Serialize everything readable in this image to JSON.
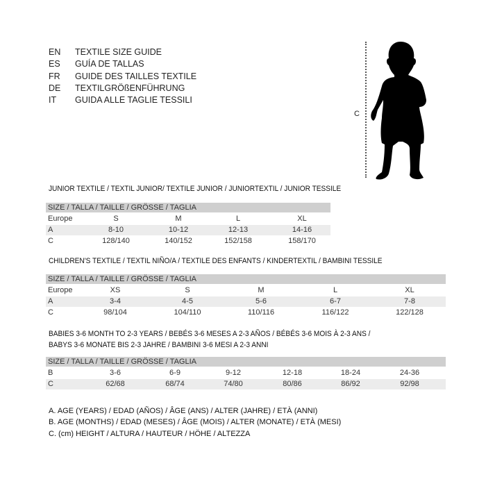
{
  "languages": [
    {
      "code": "EN",
      "text": "TEXTILE SIZE GUIDE"
    },
    {
      "code": "ES",
      "text": "GUÍA DE TALLAS"
    },
    {
      "code": "FR",
      "text": "GUIDE DES TAILLES TEXTILE"
    },
    {
      "code": "DE",
      "text": "TEXTILGRÖßENFÜHRUNG"
    },
    {
      "code": "IT",
      "text": "GUIDA ALLE TAGLIE TESSILI"
    }
  ],
  "figure": {
    "measure_label": "C",
    "icon": "baby-silhouette"
  },
  "size_header": "SIZE / TALLA / TAILLE / GRÖSSE / TAGLIA",
  "junior": {
    "title": "JUNIOR TEXTILE / TEXTIL JUNIOR/ TEXTILE JUNIOR / JUNIORTEXTIL / JUNIOR TESSILE",
    "rows": [
      {
        "label": "Europe",
        "values": [
          "S",
          "M",
          "L",
          "XL"
        ]
      },
      {
        "label": "A",
        "values": [
          "8-10",
          "10-12",
          "12-13",
          "14-16"
        ]
      },
      {
        "label": "C",
        "values": [
          "128/140",
          "140/152",
          "152/158",
          "158/170"
        ]
      }
    ]
  },
  "children": {
    "title": "CHILDREN'S TEXTILE / TEXTIL NIÑO/A / TEXTILE DES ENFANTS / KINDERTEXTIL / BAMBINI TESSILE",
    "rows": [
      {
        "label": "Europe",
        "values": [
          "XS",
          "S",
          "M",
          "L",
          "XL"
        ]
      },
      {
        "label": "A",
        "values": [
          "3-4",
          "4-5",
          "5-6",
          "6-7",
          "7-8"
        ]
      },
      {
        "label": "C",
        "values": [
          "98/104",
          "104/110",
          "110/116",
          "116/122",
          "122/128"
        ]
      }
    ]
  },
  "babies": {
    "title_line1": "BABIES 3-6 MONTH TO 2-3 YEARS / BEBÉS 3-6 MESES A 2-3 AÑOS / BÉBÉS 3-6 MOIS À 2-3 ANS /",
    "title_line2": "BABYS 3-6 MONATE BIS 2-3 JAHRE / BAMBINI 3-6 MESI A 2-3 ANNI",
    "rows": [
      {
        "label": "B",
        "values": [
          "3-6",
          "6-9",
          "9-12",
          "12-18",
          "18-24",
          "24-36"
        ]
      },
      {
        "label": "C",
        "values": [
          "62/68",
          "68/74",
          "74/80",
          "80/86",
          "86/92",
          "92/98"
        ]
      }
    ]
  },
  "legend": [
    "A. AGE (YEARS) / EDAD (AÑOS) / ÂGE (ANS) / ALTER (JAHRE) / ETÀ (ANNI)",
    "B. AGE (MONTHS) / EDAD (MESES) / ÂGE (MOIS) / ALTER (MONATE) / ETÀ (MESI)",
    "C. (cm) HEIGHT / ALTURA / HAUTEUR / HÖHE / ALTEZZA"
  ]
}
